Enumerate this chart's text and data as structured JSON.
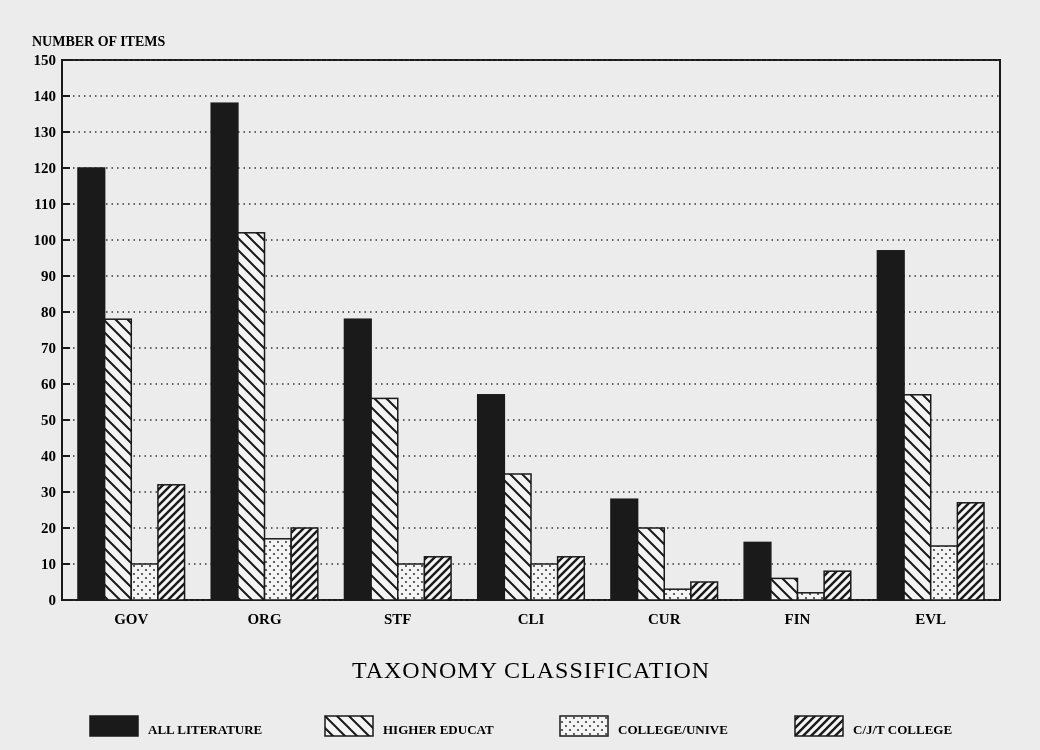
{
  "chart_data": {
    "type": "bar",
    "ylabel": "NUMBER OF ITEMS",
    "xlabel": "TAXONOMY CLASSIFICATION",
    "categories": [
      "GOV",
      "ORG",
      "STF",
      "CLI",
      "CUR",
      "FIN",
      "EVL"
    ],
    "series": [
      {
        "name": "ALL LITERATURE",
        "color": "#1a1a1a",
        "values": [
          120,
          138,
          78,
          57,
          28,
          16,
          97
        ]
      },
      {
        "name": "HIGHER EDUCAT",
        "color": "#1a1a1a",
        "values": [
          78,
          102,
          56,
          35,
          20,
          6,
          57
        ]
      },
      {
        "name": "COLLEGE/UNIVE",
        "color": "#1a1a1a",
        "values": [
          10,
          17,
          10,
          10,
          3,
          2,
          15
        ]
      },
      {
        "name": "C/J/T COLLEGE",
        "color": "#1a1a1a",
        "values": [
          32,
          20,
          12,
          12,
          5,
          8,
          27
        ]
      }
    ],
    "ylim": [
      0,
      150
    ],
    "yticks": [
      0,
      10,
      20,
      30,
      40,
      50,
      60,
      70,
      80,
      90,
      100,
      110,
      120,
      130,
      140,
      150
    ],
    "grid": "y",
    "legend": "bottom"
  }
}
